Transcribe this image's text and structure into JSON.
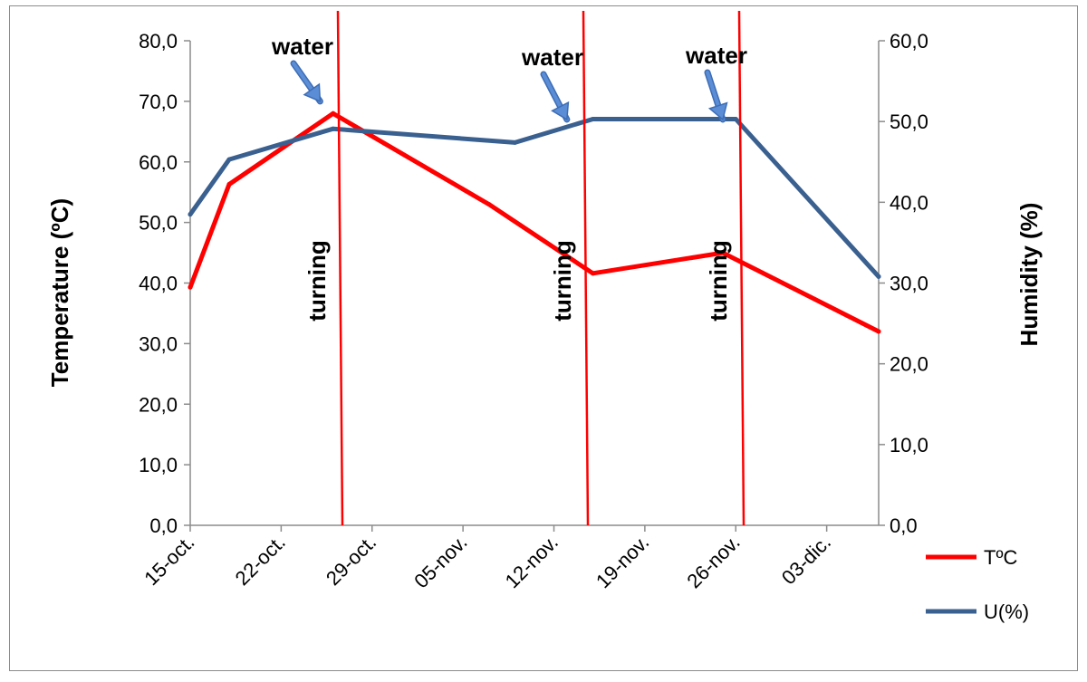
{
  "chart_data": {
    "type": "line",
    "title": "",
    "xlabel": "",
    "ylabel": "Temperature (ºC)",
    "y2label": "Humidity (%)",
    "x_ticks": [
      "15-oct.",
      "22-oct.",
      "29-oct.",
      "05-nov.",
      "12-nov.",
      "19-nov.",
      "26-nov.",
      "03-dic."
    ],
    "y_ticks": [
      "0,0",
      "10,0",
      "20,0",
      "30,0",
      "40,0",
      "50,0",
      "60,0",
      "70,0",
      "80,0"
    ],
    "y2_ticks": [
      "0,0",
      "10,0",
      "20,0",
      "30,0",
      "40,0",
      "50,0",
      "60,0"
    ],
    "ylim": [
      0,
      80
    ],
    "y2lim": [
      0,
      60
    ],
    "xlim": [
      "2012-10-15",
      "2012-12-07"
    ],
    "grid": false,
    "legend_position": "bottom-right",
    "series": [
      {
        "name": "TºC",
        "axis": "left",
        "color": "#ff0000",
        "points": [
          {
            "x": "2012-10-15",
            "y": 39.3
          },
          {
            "x": "2012-10-18",
            "y": 56.3
          },
          {
            "x": "2012-10-26",
            "y": 68.0
          },
          {
            "x": "2012-11-07",
            "y": 53.0
          },
          {
            "x": "2012-11-15",
            "y": 41.6
          },
          {
            "x": "2012-11-25",
            "y": 45.0
          },
          {
            "x": "2012-12-07",
            "y": 32.0
          }
        ]
      },
      {
        "name": "U(%)",
        "axis": "right",
        "color": "#3a6090",
        "points": [
          {
            "x": "2012-10-15",
            "y": 38.5
          },
          {
            "x": "2012-10-18",
            "y": 45.3
          },
          {
            "x": "2012-10-26",
            "y": 49.1
          },
          {
            "x": "2012-11-09",
            "y": 47.4
          },
          {
            "x": "2012-11-15",
            "y": 50.3
          },
          {
            "x": "2012-11-26",
            "y": 50.3
          },
          {
            "x": "2012-12-07",
            "y": 30.8
          }
        ]
      }
    ],
    "vertical_lines": [
      {
        "x": "2012-10-26",
        "label": "turning",
        "color": "#ff0000"
      },
      {
        "x": "2012-11-14",
        "label": "turning",
        "color": "#ff0000"
      },
      {
        "x": "2012-11-26",
        "label": "turning",
        "color": "#ff0000"
      }
    ],
    "annotations": [
      {
        "text": "water",
        "target_x": "2012-10-25",
        "target_y": 70.0
      },
      {
        "text": "water",
        "target_x": "2012-11-13",
        "target_y": 67.0
      },
      {
        "text": "water",
        "target_x": "2012-11-25",
        "target_y": 67.0
      }
    ],
    "colors": {
      "axis": "#8c8c8c",
      "arrow": "#5b8dd6",
      "arrow_stroke": "#3d6db5"
    }
  }
}
